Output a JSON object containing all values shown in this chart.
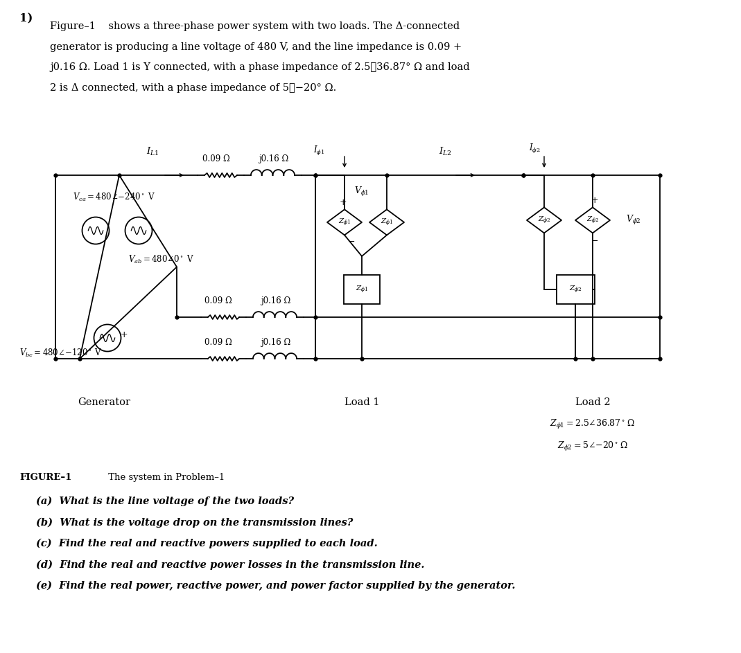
{
  "bg_color": "#ffffff",
  "line_color": "#000000",
  "title_num": "1)",
  "para_line1": "Figure–1    shows a three-phase power system with two loads. The Δ-connected",
  "para_line2": "generator is producing a line voltage of 480 V, and the line impedance is 0.09 +",
  "para_line3": "j0.16 Ω. Load 1 is Y connected, with a phase impedance of 2.5⍠36.87° Ω and load",
  "para_line4": "2 is Δ connected, with a phase impedance of 5⍠−20° Ω.",
  "fig_caption_bold": "FIGURE–1",
  "fig_caption_rest": " The system in Problem–1",
  "q_a": "(a)  What is the line voltage of the two loads?",
  "q_b": "(b)  What is the voltage drop on the transmission lines?",
  "q_c": "(c)  Find the real and reactive powers supplied to each load.",
  "q_d": "(d)  Find the real and reactive power losses in the transmission line.",
  "q_e": "(e)  Find the real power, reactive power, and power factor supplied by the generator.",
  "label_IL1": "$I_{L1}$",
  "label_IL2": "$I_{L2}$",
  "label_Iphi1": "$I_{\\phi1}$",
  "label_Iphi2": "$I_{\\phi2}$",
  "label_Vca": "$V_{ca} = 480\\angle{-240^\\circ}$ V",
  "label_Vab": "$V_{ab} = 480\\angle{0^\\circ}$ V",
  "label_Vbc": "$V_{bc} = 480\\angle{-120^\\circ}$ V",
  "label_Vphi1": "$V_{\\phi1}$",
  "label_Vphi2": "$V_{\\phi2}$",
  "label_Zphi1_d": "$Z_{\\phi1}$",
  "label_Zphi2_d": "$Z_{\\phi2}$",
  "label_res": "0.09 Ω",
  "label_ind": "j0.16 Ω",
  "label_gen": "Generator",
  "label_load1": "Load 1",
  "label_load2": "Load 2",
  "label_Zphi1_val": "$Z_{\\phi1} = 2.5\\angle36.87^\\circ\\,\\Omega$",
  "label_Zphi2_val": "$Z_{\\phi2} = 5\\angle{-20^\\circ}\\,\\Omega$"
}
